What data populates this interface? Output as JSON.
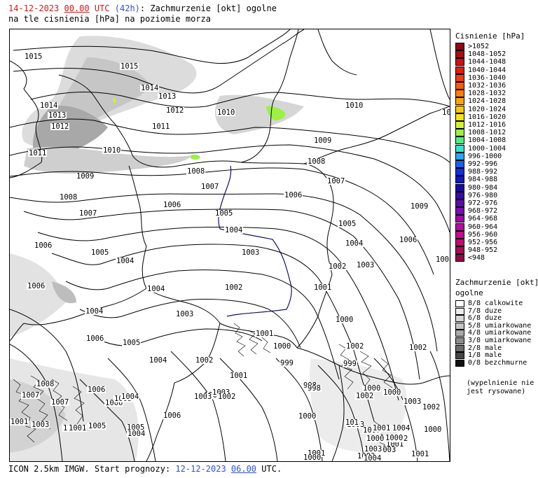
{
  "header": {
    "date": "14-12-2023",
    "hour": "00.00",
    "utc": "UTC",
    "lead": "(42h)",
    "title_rest": ": Zachmurzenie [okt] ogolne",
    "subtitle": "na tle cisnienia [hPa] na poziomie morza"
  },
  "footer": {
    "model": "ICON 2.5km IMGW. Start prognozy:",
    "start_date": "12-12-2023",
    "start_hour": "06.00",
    "utc": "UTC."
  },
  "pressure_legend": {
    "title": "Cisnienie [hPa]",
    "items": [
      {
        "label": ">1052",
        "color": "#8b0a12"
      },
      {
        "label": "1048-1052",
        "color": "#a80f14"
      },
      {
        "label": "1044-1048",
        "color": "#c81414"
      },
      {
        "label": "1040-1044",
        "color": "#e41c14"
      },
      {
        "label": "1036-1040",
        "color": "#ee3c14"
      },
      {
        "label": "1032-1036",
        "color": "#f45a14"
      },
      {
        "label": "1028-1032",
        "color": "#f77d12"
      },
      {
        "label": "1024-1028",
        "color": "#f9a212"
      },
      {
        "label": "1020-1024",
        "color": "#f8c614"
      },
      {
        "label": "1016-1020",
        "color": "#f2e418"
      },
      {
        "label": "1012-1016",
        "color": "#d2f03a"
      },
      {
        "label": "1008-1012",
        "color": "#9cf046"
      },
      {
        "label": "1004-1008",
        "color": "#54ec80"
      },
      {
        "label": "1000-1004",
        "color": "#34e4d0"
      },
      {
        "label": "996-1000",
        "color": "#2ca4f0"
      },
      {
        "label": "992-996",
        "color": "#1c60ec"
      },
      {
        "label": "988-992",
        "color": "#1430d8"
      },
      {
        "label": "984-988",
        "color": "#1418b8"
      },
      {
        "label": "980-984",
        "color": "#180c9c"
      },
      {
        "label": "976-980",
        "color": "#3a0ca0"
      },
      {
        "label": "972-976",
        "color": "#5c0ca8"
      },
      {
        "label": "968-972",
        "color": "#7c0cb0"
      },
      {
        "label": "964-968",
        "color": "#9c0cac"
      },
      {
        "label": "960-964",
        "color": "#b40ca0"
      },
      {
        "label": "956-960",
        "color": "#c40c8c"
      },
      {
        "label": "952-956",
        "color": "#c00c70"
      },
      {
        "label": "948-952",
        "color": "#a80c58"
      },
      {
        "label": "<948",
        "color": "#8c0c44"
      }
    ]
  },
  "cloud_legend": {
    "title": "Zachmurzenie [okt]",
    "title2": "ogolne",
    "items": [
      {
        "label": "8/8 calkowite",
        "color": "#ffffff"
      },
      {
        "label": "7/8 duze",
        "color": "#ececec"
      },
      {
        "label": "6/8 duze",
        "color": "#d8d8d8"
      },
      {
        "label": "5/8 umiarkowane",
        "color": "#c4c4c4"
      },
      {
        "label": "4/8 umiarkowane",
        "color": "#aaaaaa"
      },
      {
        "label": "3/8 umiarkowane",
        "color": "#8c8c8c"
      },
      {
        "label": "2/8 male",
        "color": "#6c6c6c"
      },
      {
        "label": "1/8 male",
        "color": "#444444"
      },
      {
        "label": "0/8 bezchmurne",
        "color": "#111111"
      }
    ],
    "note": "(wypelnienie nie\njest rysowane)"
  },
  "isobar_labels": [
    "1015",
    "1015",
    "1014",
    "1013",
    "1014",
    "1012",
    "1013",
    "1012",
    "1011",
    "1011",
    "1010",
    "1010",
    "1010",
    "1009",
    "1009",
    "1008",
    "1008",
    "1008",
    "1007",
    "1007",
    "1007",
    "1006",
    "1006",
    "1006",
    "1005",
    "1005",
    "1005",
    "1004",
    "1004",
    "1004",
    "1006",
    "1009",
    "1006",
    "1008",
    "1004",
    "1003",
    "1003",
    "1002",
    "1002",
    "1001",
    "1006",
    "1004",
    "1003",
    "1000",
    "1002",
    "1001",
    "1000",
    "1005",
    "1004",
    "1003",
    "999",
    "998",
    "999",
    "1002",
    "1002",
    "1001",
    "1000",
    "998",
    "1003",
    "1002",
    "1003",
    "1000",
    "1000",
    "1003",
    "1001",
    "1007",
    "1008",
    "1007",
    "1006",
    "1007",
    "1006",
    "1005",
    "1004",
    "1005",
    "1006",
    "1005",
    "1004",
    "1001",
    "1001",
    "1002",
    "1004",
    "1003",
    "1002",
    "1000",
    "1001",
    "1003",
    "1003",
    "1004",
    "1001",
    "1000",
    "101",
    "1004",
    "1006",
    "1001",
    "1003",
    "1003",
    "1002",
    "1000",
    "1000"
  ]
}
